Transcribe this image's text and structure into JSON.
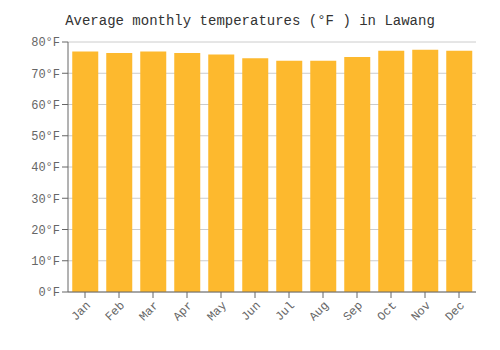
{
  "chart_data": {
    "type": "bar",
    "title": "Average monthly temperatures (°F ) in Lawang",
    "categories": [
      "Jan",
      "Feb",
      "Mar",
      "Apr",
      "May",
      "Jun",
      "Jul",
      "Aug",
      "Sep",
      "Oct",
      "Nov",
      "Dec"
    ],
    "values": [
      77.0,
      76.5,
      77.0,
      76.5,
      76.0,
      74.8,
      74.0,
      74.0,
      75.2,
      77.2,
      77.5,
      77.2
    ],
    "color": "#FDB92E",
    "ylim": [
      0,
      80
    ],
    "yticks": [
      {
        "value": 0,
        "label": "0°F"
      },
      {
        "value": 10,
        "label": "10°F"
      },
      {
        "value": 20,
        "label": "20°F"
      },
      {
        "value": 30,
        "label": "30°F"
      },
      {
        "value": 40,
        "label": "40°F"
      },
      {
        "value": 50,
        "label": "50°F"
      },
      {
        "value": 60,
        "label": "60°F"
      },
      {
        "value": 70,
        "label": "70°F"
      },
      {
        "value": 80,
        "label": "80°F"
      }
    ],
    "grid": true
  }
}
